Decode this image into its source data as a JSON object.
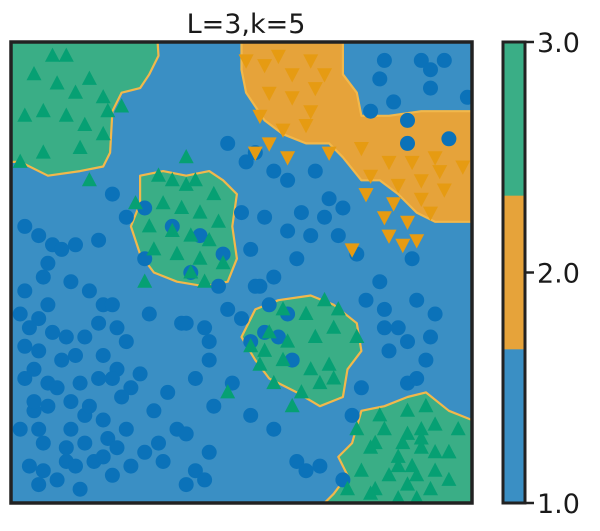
{
  "chart_data": {
    "type": "scatter",
    "title": "L=3,k=5",
    "xlabel": "",
    "ylabel": "",
    "xlim": [
      0,
      1
    ],
    "ylim": [
      0,
      1
    ],
    "grid": false,
    "legend": "none",
    "colors": {
      "class_1": "#3a8fc4",
      "class_2": "#e6a33a",
      "class_3": "#3aae86",
      "marker_1": "#0b72b9",
      "marker_2": "#e69b12",
      "marker_3": "#06a073",
      "boundary": "#f2b84b",
      "frame": "#222222"
    },
    "classes": [
      {
        "value": 1,
        "marker": "circle"
      },
      {
        "value": 2,
        "marker": "triangle-down"
      },
      {
        "value": 3,
        "marker": "triangle-up"
      }
    ],
    "colorbar": {
      "ticks": [
        "1.0",
        "2.0",
        "3.0"
      ],
      "range": [
        1,
        3
      ]
    },
    "regions": [
      {
        "class": 3,
        "points": [
          [
            0,
            1
          ],
          [
            0.318,
            1
          ],
          [
            0.32,
            0.97
          ],
          [
            0.3,
            0.93
          ],
          [
            0.28,
            0.9
          ],
          [
            0.24,
            0.89
          ],
          [
            0.22,
            0.85
          ],
          [
            0.215,
            0.76
          ],
          [
            0.2,
            0.73
          ],
          [
            0.15,
            0.72
          ],
          [
            0.08,
            0.71
          ],
          [
            0.02,
            0.74
          ],
          [
            0,
            0.74
          ]
        ]
      },
      {
        "class": 3,
        "points": [
          [
            0.28,
            0.71
          ],
          [
            0.33,
            0.72
          ],
          [
            0.38,
            0.71
          ],
          [
            0.43,
            0.72
          ],
          [
            0.46,
            0.7
          ],
          [
            0.49,
            0.67
          ],
          [
            0.48,
            0.6
          ],
          [
            0.49,
            0.53
          ],
          [
            0.47,
            0.48
          ],
          [
            0.42,
            0.47
          ],
          [
            0.36,
            0.48
          ],
          [
            0.31,
            0.5
          ],
          [
            0.28,
            0.54
          ],
          [
            0.26,
            0.6
          ],
          [
            0.28,
            0.65
          ]
        ]
      },
      {
        "class": 3,
        "points": [
          [
            0.5,
            0.36
          ],
          [
            0.53,
            0.42
          ],
          [
            0.58,
            0.44
          ],
          [
            0.65,
            0.45
          ],
          [
            0.7,
            0.43
          ],
          [
            0.75,
            0.39
          ],
          [
            0.76,
            0.33
          ],
          [
            0.73,
            0.29
          ],
          [
            0.72,
            0.23
          ],
          [
            0.67,
            0.21
          ],
          [
            0.62,
            0.24
          ],
          [
            0.56,
            0.27
          ],
          [
            0.53,
            0.31
          ]
        ]
      },
      {
        "class": 3,
        "points": [
          [
            1,
            0.18
          ],
          [
            0.95,
            0.2
          ],
          [
            0.9,
            0.24
          ],
          [
            0.86,
            0.23
          ],
          [
            0.81,
            0.21
          ],
          [
            0.76,
            0.2
          ],
          [
            0.74,
            0.13
          ],
          [
            0.71,
            0.1
          ],
          [
            0.73,
            0.06
          ],
          [
            0.7,
            0.02
          ],
          [
            0.68,
            0
          ],
          [
            1,
            0
          ]
        ]
      },
      {
        "class": 2,
        "points": [
          [
            0.5,
            1
          ],
          [
            0.72,
            1
          ],
          [
            0.72,
            0.93
          ],
          [
            0.75,
            0.89
          ],
          [
            0.76,
            0.84
          ],
          [
            0.82,
            0.84
          ],
          [
            0.89,
            0.85
          ],
          [
            1,
            0.85
          ],
          [
            1,
            0.61
          ],
          [
            0.92,
            0.61
          ],
          [
            0.88,
            0.63
          ],
          [
            0.84,
            0.67
          ],
          [
            0.8,
            0.7
          ],
          [
            0.76,
            0.7
          ],
          [
            0.72,
            0.75
          ],
          [
            0.69,
            0.78
          ],
          [
            0.64,
            0.78
          ],
          [
            0.59,
            0.8
          ],
          [
            0.55,
            0.83
          ],
          [
            0.51,
            0.89
          ],
          [
            0.5,
            0.94
          ]
        ]
      }
    ],
    "series": [
      {
        "class": 1,
        "marker": "circle",
        "x": [
          0.22,
          0.25,
          0.29,
          0.19,
          0.14,
          0.29,
          0.39,
          0.03,
          0.06,
          0.09,
          0.11,
          0.08,
          0.07,
          0.03,
          0.13,
          0.17,
          0.2,
          0.08,
          0.02,
          0.06,
          0.04,
          0.09,
          0.12,
          0.16,
          0.19,
          0.23,
          0.03,
          0.06,
          0.11,
          0.14,
          0.2,
          0.25,
          0.03,
          0.05,
          0.08,
          0.1,
          0.15,
          0.19,
          0.23,
          0.26,
          0.05,
          0.08,
          0.13,
          0.16,
          0.06,
          0.02,
          0.07,
          0.13,
          0.16,
          0.21,
          0.23,
          0.29,
          0.04,
          0.07,
          0.12,
          0.18,
          0.22,
          0.26,
          0.33,
          0.06,
          0.1,
          0.15,
          0.2,
          0.25,
          0.31,
          0.36,
          0.14,
          0.2,
          0.24,
          0.32,
          0.38,
          0.43,
          0.05,
          0.12,
          0.17,
          0.22,
          0.28,
          0.34,
          0.4,
          0.44,
          0.22,
          0.3,
          0.37,
          0.42,
          0.47,
          0.52,
          0.46,
          0.52,
          0.35,
          0.41,
          0.5,
          0.55,
          0.6,
          0.65,
          0.43,
          0.48,
          0.52,
          0.57,
          0.62,
          0.67,
          0.38,
          0.43,
          0.45,
          0.54,
          0.57,
          0.62,
          0.63,
          0.68,
          0.71,
          0.75,
          0.51,
          0.47,
          0.53,
          0.57,
          0.6,
          0.66,
          0.69,
          0.72,
          0.8,
          0.83,
          0.86,
          0.91,
          0.95,
          0.89,
          0.81,
          0.78,
          0.86,
          0.91,
          0.94,
          0.99,
          0.81,
          0.86,
          0.9,
          0.86,
          0.82,
          0.64,
          0.72,
          0.92,
          0.8,
          0.77,
          0.81,
          0.84,
          0.87,
          0.88,
          0.91,
          0.88,
          0.76,
          0.74,
          0.53,
          0.56,
          0.6,
          0.55,
          0.58,
          0.61,
          0.5,
          0.4,
          0.42,
          0.38
        ],
        "y": [
          0.67,
          0.62,
          0.64,
          0.57,
          0.56,
          0.53,
          0.5,
          0.6,
          0.58,
          0.56,
          0.55,
          0.52,
          0.49,
          0.46,
          0.48,
          0.46,
          0.43,
          0.43,
          0.41,
          0.4,
          0.38,
          0.37,
          0.36,
          0.36,
          0.39,
          0.38,
          0.34,
          0.33,
          0.31,
          0.32,
          0.32,
          0.35,
          0.27,
          0.29,
          0.26,
          0.25,
          0.26,
          0.27,
          0.29,
          0.25,
          0.2,
          0.21,
          0.22,
          0.19,
          0.16,
          0.16,
          0.13,
          0.16,
          0.13,
          0.14,
          0.12,
          0.11,
          0.08,
          0.07,
          0.09,
          0.09,
          0.06,
          0.08,
          0.09,
          0.04,
          0.05,
          0.03,
          0.1,
          0.16,
          0.2,
          0.16,
          0.08,
          0.18,
          0.23,
          0.13,
          0.15,
          0.11,
          0.22,
          0.12,
          0.21,
          0.27,
          0.28,
          0.24,
          0.27,
          0.21,
          0.43,
          0.41,
          0.39,
          0.38,
          0.42,
          0.35,
          0.54,
          0.55,
          0.6,
          0.58,
          0.63,
          0.62,
          0.59,
          0.58,
          0.31,
          0.26,
          0.19,
          0.16,
          0.09,
          0.08,
          0.39,
          0.35,
          0.47,
          0.47,
          0.49,
          0.53,
          0.63,
          0.62,
          0.58,
          0.54,
          0.74,
          0.78,
          0.76,
          0.72,
          0.7,
          0.72,
          0.66,
          0.64,
          0.92,
          0.87,
          0.83,
          0.9,
          0.79,
          0.96,
          0.96,
          0.85,
          0.78,
          0.94,
          0.96,
          0.88,
          0.38,
          0.35,
          0.31,
          0.26,
          0.33,
          0.07,
          0.05,
          0.41,
          0.48,
          0.44,
          0.42,
          0.38,
          0.53,
          0.44,
          0.36,
          0.27,
          0.25,
          0.19,
          0.47,
          0.43,
          0.41,
          0.37,
          0.36,
          0.31,
          0.4,
          0.07,
          0.05,
          0.04
        ]
      },
      {
        "class": 2,
        "marker": "triangle-down",
        "x": [
          0.51,
          0.55,
          0.58,
          0.61,
          0.65,
          0.68,
          0.56,
          0.61,
          0.66,
          0.54,
          0.59,
          0.64,
          0.56,
          0.6,
          0.69,
          0.76,
          0.82,
          0.87,
          0.92,
          0.98,
          0.78,
          0.84,
          0.89,
          0.93,
          0.77,
          0.83,
          0.89,
          0.94,
          0.81,
          0.86,
          0.91,
          0.82,
          0.88,
          0.53,
          0.74,
          0.85,
          0.65
        ],
        "y": [
          0.96,
          0.95,
          0.97,
          0.93,
          0.96,
          0.93,
          0.89,
          0.88,
          0.9,
          0.84,
          0.81,
          0.82,
          0.78,
          0.75,
          0.76,
          0.77,
          0.74,
          0.74,
          0.75,
          0.73,
          0.71,
          0.69,
          0.7,
          0.72,
          0.67,
          0.65,
          0.66,
          0.68,
          0.62,
          0.61,
          0.63,
          0.58,
          0.57,
          0.76,
          0.55,
          0.56,
          0.85
        ]
      },
      {
        "class": 3,
        "marker": "triangle-up",
        "x": [
          0.09,
          0.12,
          0.2,
          0.24,
          0.05,
          0.1,
          0.14,
          0.17,
          0.21,
          0.03,
          0.07,
          0.12,
          0.16,
          0.2,
          0.07,
          0.15,
          0.02,
          0.17,
          0.32,
          0.35,
          0.38,
          0.4,
          0.44,
          0.33,
          0.37,
          0.41,
          0.45,
          0.3,
          0.35,
          0.39,
          0.43,
          0.31,
          0.36,
          0.41,
          0.29,
          0.27,
          0.39,
          0.42,
          0.46,
          0.38,
          0.59,
          0.64,
          0.68,
          0.71,
          0.56,
          0.6,
          0.66,
          0.7,
          0.54,
          0.59,
          0.65,
          0.69,
          0.57,
          0.63,
          0.67,
          0.61,
          0.7,
          0.52,
          0.75,
          0.47,
          0.55,
          0.75,
          0.8,
          0.86,
          0.9,
          0.81,
          0.86,
          0.92,
          0.97,
          0.78,
          0.84,
          0.89,
          0.95,
          0.76,
          0.82,
          0.87,
          0.92,
          0.79,
          0.86,
          0.91,
          0.78,
          0.84,
          0.88,
          0.73,
          0.79,
          0.88,
          0.95,
          0.85,
          0.92,
          0.84,
          0.89,
          0.95,
          0.89
        ],
        "y": [
          0.97,
          0.97,
          0.88,
          0.86,
          0.93,
          0.91,
          0.89,
          0.92,
          0.85,
          0.84,
          0.85,
          0.84,
          0.82,
          0.8,
          0.76,
          0.77,
          0.74,
          0.7,
          0.71,
          0.7,
          0.69,
          0.7,
          0.67,
          0.65,
          0.64,
          0.63,
          0.61,
          0.6,
          0.59,
          0.58,
          0.57,
          0.55,
          0.54,
          0.53,
          0.48,
          0.65,
          0.5,
          0.48,
          0.52,
          0.75,
          0.42,
          0.41,
          0.44,
          0.42,
          0.37,
          0.35,
          0.36,
          0.38,
          0.3,
          0.31,
          0.29,
          0.3,
          0.26,
          0.24,
          0.26,
          0.21,
          0.27,
          0.34,
          0.36,
          0.24,
          0.33,
          0.16,
          0.19,
          0.2,
          0.21,
          0.16,
          0.15,
          0.17,
          0.16,
          0.12,
          0.1,
          0.12,
          0.11,
          0.07,
          0.06,
          0.08,
          0.07,
          0.03,
          0.04,
          0.03,
          0.02,
          0.01,
          0.06,
          0.03,
          0.13,
          0.01,
          0.05,
          0.13,
          0.11,
          0.08,
          0.16,
          0.11,
          0.14
        ]
      }
    ]
  }
}
